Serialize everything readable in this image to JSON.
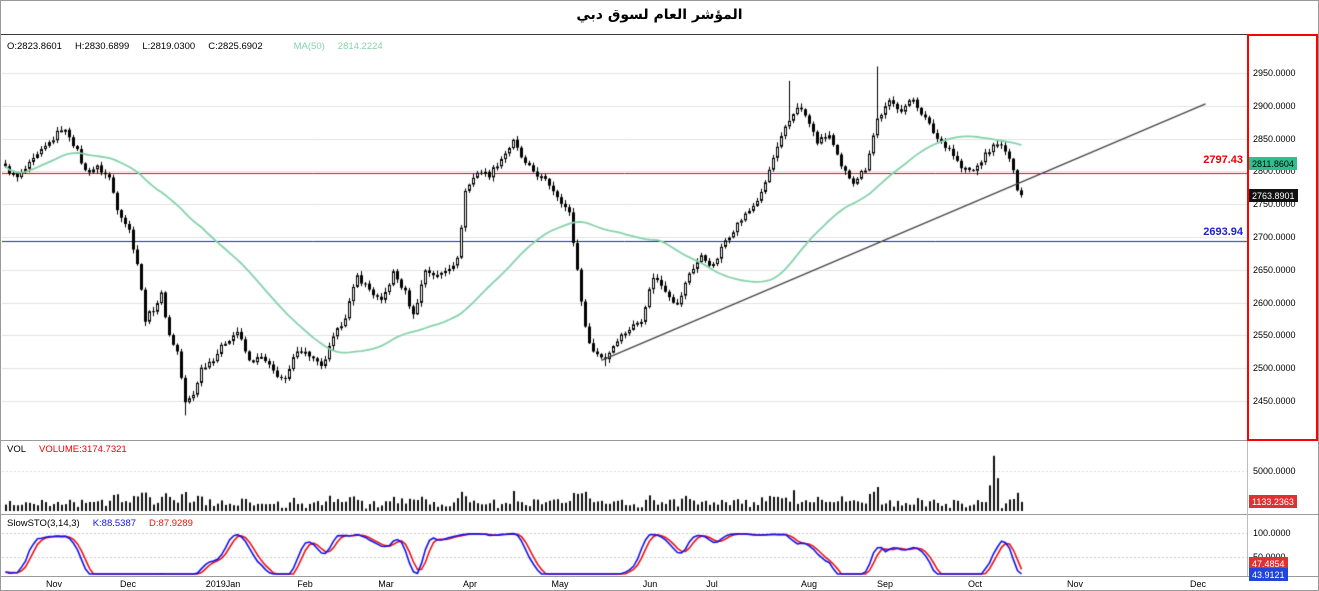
{
  "title": "المؤشر العام لسوق دبي",
  "main_panel": {
    "legend": {
      "o": "O:2823.8601",
      "h": "H:2830.6899",
      "l": "L:2819.0300",
      "c": "C:2825.6902",
      "ma_label": "MA(50)",
      "ma_value": "2814.2224"
    },
    "axis_ticks": [
      "2950.0000",
      "2900.0000",
      "2850.0000",
      "2800.0000",
      "2750.0000",
      "2700.0000",
      "2650.0000",
      "2600.0000",
      "2550.0000",
      "2500.0000",
      "2450.0000"
    ],
    "hline_labels": [
      {
        "label": "2797.43",
        "color": "#ee0000"
      },
      {
        "label": "2693.94",
        "color": "#2222cc"
      }
    ],
    "badges": [
      {
        "text": "2811.8604",
        "bg": "#2fbf8f",
        "fg": "#000000"
      },
      {
        "text": "2763.8901",
        "bg": "#111111",
        "fg": "#ffffff"
      }
    ]
  },
  "volume_panel": {
    "label": "VOL",
    "value": "VOLUME:3174.7321",
    "tick": "5000.0000",
    "badge": "1133.2363"
  },
  "sto_panel": {
    "label": "SlowSTO(3,14,3)",
    "k": "K:88.5387",
    "d": "D:87.9289",
    "ticks": [
      "100.0000",
      "50.0000"
    ],
    "badges": [
      {
        "text": "47.4854",
        "bg": "#e03131"
      },
      {
        "text": "43.9121",
        "bg": "#2244dd"
      }
    ]
  },
  "colors": {
    "up_candle": "#ffffff",
    "down_candle": "#000000",
    "candle_stroke": "#000000",
    "ma_line": "#85d2ab",
    "red_line": "#ff0000",
    "blue_line": "#2222cc",
    "trendline": "#444444",
    "grid": "#e2e2e2",
    "k_line": "#1111ee",
    "d_line": "#ee1111",
    "volume_bar": "#111111"
  },
  "chart_data": {
    "type": "candlestick",
    "title": "المؤشر العام لسوق دبي",
    "price_axis": {
      "min": 2450,
      "max": 2950,
      "step": 50
    },
    "candle_count": 255,
    "last_close": 2763.8901,
    "close_anchors": [
      [
        0,
        2805
      ],
      [
        3,
        2790
      ],
      [
        6,
        2810
      ],
      [
        9,
        2830
      ],
      [
        12,
        2850
      ],
      [
        14,
        2866
      ],
      [
        16,
        2855
      ],
      [
        18,
        2830
      ],
      [
        20,
        2800
      ],
      [
        23,
        2806
      ],
      [
        26,
        2790
      ],
      [
        28,
        2745
      ],
      [
        31,
        2710
      ],
      [
        33,
        2660
      ],
      [
        35,
        2575
      ],
      [
        37,
        2590
      ],
      [
        39,
        2612
      ],
      [
        41,
        2550
      ],
      [
        43,
        2525
      ],
      [
        45,
        2446
      ],
      [
        47,
        2460
      ],
      [
        49,
        2500
      ],
      [
        52,
        2515
      ],
      [
        55,
        2540
      ],
      [
        58,
        2556
      ],
      [
        61,
        2510
      ],
      [
        64,
        2516
      ],
      [
        67,
        2495
      ],
      [
        70,
        2480
      ],
      [
        73,
        2530
      ],
      [
        76,
        2520
      ],
      [
        79,
        2500
      ],
      [
        82,
        2545
      ],
      [
        85,
        2580
      ],
      [
        88,
        2640
      ],
      [
        91,
        2620
      ],
      [
        94,
        2600
      ],
      [
        97,
        2645
      ],
      [
        100,
        2615
      ],
      [
        102,
        2580
      ],
      [
        105,
        2650
      ],
      [
        108,
        2640
      ],
      [
        111,
        2655
      ],
      [
        113,
        2665
      ],
      [
        115,
        2770
      ],
      [
        118,
        2800
      ],
      [
        121,
        2795
      ],
      [
        124,
        2820
      ],
      [
        127,
        2845
      ],
      [
        130,
        2810
      ],
      [
        133,
        2795
      ],
      [
        136,
        2780
      ],
      [
        139,
        2755
      ],
      [
        141,
        2735
      ],
      [
        143,
        2650
      ],
      [
        145,
        2560
      ],
      [
        147,
        2525
      ],
      [
        150,
        2515
      ],
      [
        153,
        2545
      ],
      [
        156,
        2560
      ],
      [
        159,
        2575
      ],
      [
        162,
        2640
      ],
      [
        165,
        2620
      ],
      [
        168,
        2595
      ],
      [
        171,
        2645
      ],
      [
        174,
        2670
      ],
      [
        177,
        2655
      ],
      [
        180,
        2695
      ],
      [
        183,
        2720
      ],
      [
        186,
        2740
      ],
      [
        189,
        2765
      ],
      [
        192,
        2820
      ],
      [
        195,
        2865
      ],
      [
        198,
        2900
      ],
      [
        200,
        2885
      ],
      [
        203,
        2845
      ],
      [
        206,
        2855
      ],
      [
        209,
        2805
      ],
      [
        212,
        2785
      ],
      [
        215,
        2805
      ],
      [
        218,
        2880
      ],
      [
        221,
        2905
      ],
      [
        224,
        2895
      ],
      [
        227,
        2910
      ],
      [
        230,
        2880
      ],
      [
        233,
        2850
      ],
      [
        236,
        2835
      ],
      [
        239,
        2805
      ],
      [
        242,
        2800
      ],
      [
        245,
        2825
      ],
      [
        248,
        2845
      ],
      [
        251,
        2820
      ],
      [
        253,
        2775
      ],
      [
        254,
        2764
      ]
    ],
    "wick_overrides": {
      "high": {
        "196": 2938,
        "218": 2960
      },
      "low": {
        "45": 2428,
        "150": 2503
      }
    },
    "ma_period": 50,
    "hlines": [
      {
        "price": 2797.43,
        "color": "#ff0000"
      },
      {
        "price": 2693.94,
        "color": "#2222cc"
      }
    ],
    "trendline": {
      "i1": 149,
      "p1": 2512,
      "i2": 300,
      "p2": 2903
    },
    "volume": {
      "axis_max": 5000,
      "base": 260,
      "spikes": {
        "35": 2300,
        "44": 2100,
        "127": 2500,
        "145": 2400,
        "197": 2600,
        "218": 3000,
        "246": 3200,
        "247": 6900,
        "248": 4100
      }
    },
    "stochastic": {
      "lookback": 14,
      "k_smooth": 3,
      "d_smooth": 3
    },
    "months": [
      "Nov",
      "Dec",
      "2019Jan",
      "Feb",
      "Mar",
      "Apr",
      "May",
      "Jun",
      "Jul",
      "Aug",
      "Sep",
      "Oct",
      "Nov",
      "Dec"
    ]
  }
}
